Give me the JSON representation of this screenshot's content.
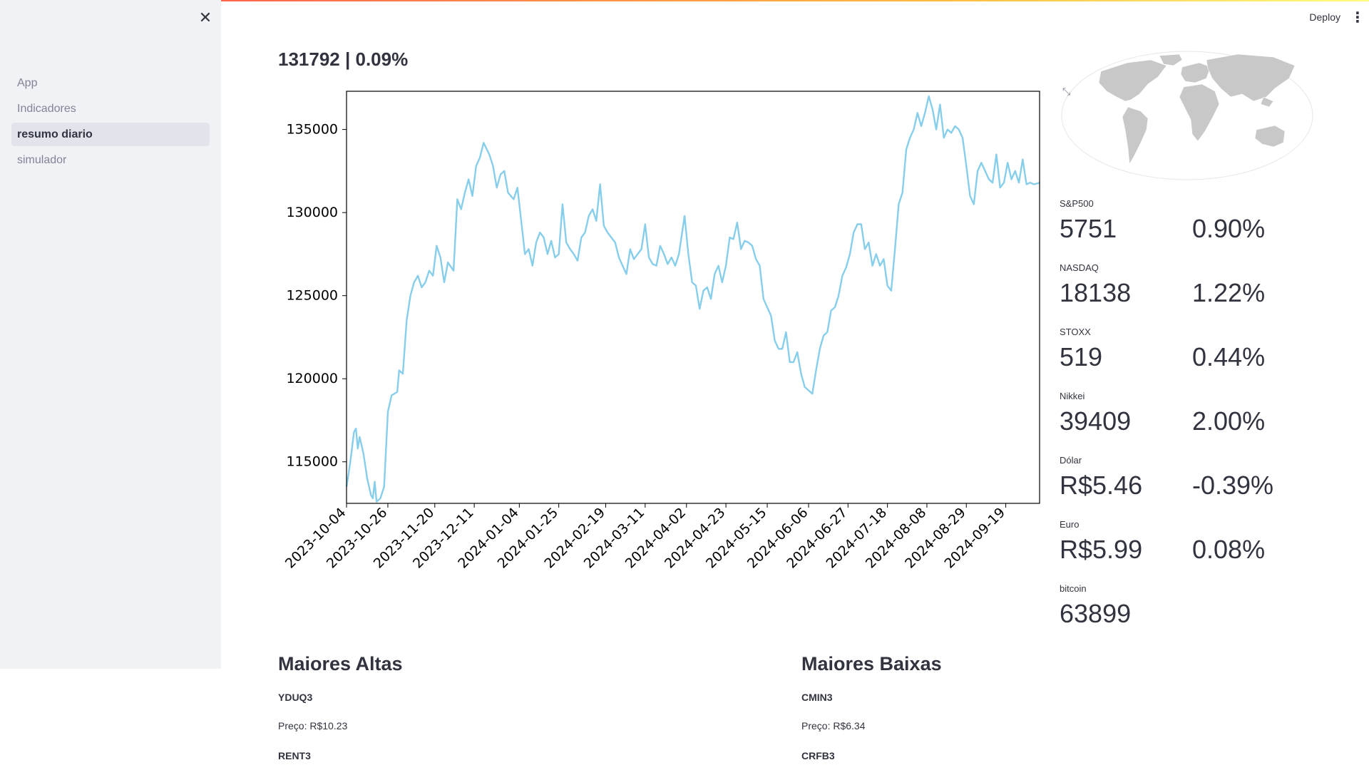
{
  "app": {
    "deploy_label": "Deploy",
    "close_icon": "close-icon",
    "menu_icon": "more-vertical-icon"
  },
  "sidebar": {
    "items": [
      {
        "label": "App",
        "active": false
      },
      {
        "label": "Indicadores",
        "active": false
      },
      {
        "label": "resumo diario",
        "active": true
      },
      {
        "label": "simulador",
        "active": false
      }
    ]
  },
  "main": {
    "title": "131792 | 0.09%"
  },
  "chart_data": {
    "type": "line",
    "title": "",
    "xlabel": "",
    "ylabel": "",
    "ylim": [
      112500,
      137300
    ],
    "yticks": [
      115000,
      120000,
      125000,
      130000,
      135000
    ],
    "xticks": [
      "2023-10-04",
      "2023-10-26",
      "2023-11-20",
      "2023-12-11",
      "2024-01-04",
      "2024-01-25",
      "2024-02-19",
      "2024-03-11",
      "2024-04-02",
      "2024-04-23",
      "2024-05-15",
      "2024-06-06",
      "2024-06-27",
      "2024-07-18",
      "2024-08-08",
      "2024-08-29",
      "2024-09-19"
    ],
    "xrange": [
      "2023-10-04",
      "2024-10-07"
    ],
    "color": "#87ceeb",
    "grid": false,
    "series": [
      {
        "points": [
          [
            "2023-10-04",
            113500
          ],
          [
            "2023-10-05",
            114200
          ],
          [
            "2023-10-06",
            115000
          ],
          [
            "2023-10-08",
            116800
          ],
          [
            "2023-10-09",
            117000
          ],
          [
            "2023-10-10",
            115800
          ],
          [
            "2023-10-11",
            116500
          ],
          [
            "2023-10-13",
            115500
          ],
          [
            "2023-10-15",
            114000
          ],
          [
            "2023-10-17",
            113000
          ],
          [
            "2023-10-18",
            112800
          ],
          [
            "2023-10-19",
            113800
          ],
          [
            "2023-10-20",
            112600
          ],
          [
            "2023-10-22",
            112800
          ],
          [
            "2023-10-24",
            113500
          ],
          [
            "2023-10-26",
            118000
          ],
          [
            "2023-10-28",
            119000
          ],
          [
            "2023-10-31",
            119200
          ],
          [
            "2023-11-01",
            120500
          ],
          [
            "2023-11-03",
            120300
          ],
          [
            "2023-11-05",
            123500
          ],
          [
            "2023-11-07",
            125000
          ],
          [
            "2023-11-09",
            125800
          ],
          [
            "2023-11-11",
            126200
          ],
          [
            "2023-11-13",
            125500
          ],
          [
            "2023-11-15",
            125800
          ],
          [
            "2023-11-17",
            126500
          ],
          [
            "2023-11-19",
            126200
          ],
          [
            "2023-11-21",
            128000
          ],
          [
            "2023-11-23",
            127300
          ],
          [
            "2023-11-25",
            125800
          ],
          [
            "2023-11-27",
            127000
          ],
          [
            "2023-11-30",
            126500
          ],
          [
            "2023-12-02",
            130800
          ],
          [
            "2023-12-04",
            130200
          ],
          [
            "2023-12-06",
            131200
          ],
          [
            "2023-12-08",
            132000
          ],
          [
            "2023-12-10",
            131000
          ],
          [
            "2023-12-12",
            132800
          ],
          [
            "2023-12-14",
            133300
          ],
          [
            "2023-12-16",
            134200
          ],
          [
            "2023-12-19",
            133500
          ],
          [
            "2023-12-21",
            132800
          ],
          [
            "2023-12-23",
            131500
          ],
          [
            "2023-12-25",
            132300
          ],
          [
            "2023-12-27",
            132500
          ],
          [
            "2023-12-29",
            131200
          ],
          [
            "2024-01-01",
            130800
          ],
          [
            "2024-01-03",
            131500
          ],
          [
            "2024-01-05",
            129500
          ],
          [
            "2024-01-07",
            127500
          ],
          [
            "2024-01-09",
            127800
          ],
          [
            "2024-01-11",
            126800
          ],
          [
            "2024-01-13",
            128200
          ],
          [
            "2024-01-15",
            128800
          ],
          [
            "2024-01-17",
            128500
          ],
          [
            "2024-01-19",
            127500
          ],
          [
            "2024-01-21",
            128300
          ],
          [
            "2024-01-23",
            127300
          ],
          [
            "2024-01-25",
            127500
          ],
          [
            "2024-01-27",
            130500
          ],
          [
            "2024-01-29",
            128200
          ],
          [
            "2024-01-31",
            127800
          ],
          [
            "2024-02-02",
            127500
          ],
          [
            "2024-02-04",
            127100
          ],
          [
            "2024-02-06",
            128500
          ],
          [
            "2024-02-08",
            128800
          ],
          [
            "2024-02-10",
            129800
          ],
          [
            "2024-02-12",
            130200
          ],
          [
            "2024-02-14",
            129500
          ],
          [
            "2024-02-16",
            131700
          ],
          [
            "2024-02-18",
            129200
          ],
          [
            "2024-02-20",
            128800
          ],
          [
            "2024-02-22",
            128500
          ],
          [
            "2024-02-24",
            128200
          ],
          [
            "2024-02-26",
            127300
          ],
          [
            "2024-02-28",
            126800
          ],
          [
            "2024-03-01",
            126300
          ],
          [
            "2024-03-03",
            127800
          ],
          [
            "2024-03-05",
            127200
          ],
          [
            "2024-03-07",
            127500
          ],
          [
            "2024-03-09",
            127800
          ],
          [
            "2024-03-11",
            129300
          ],
          [
            "2024-03-13",
            127300
          ],
          [
            "2024-03-15",
            126900
          ],
          [
            "2024-03-17",
            126800
          ],
          [
            "2024-03-19",
            128000
          ],
          [
            "2024-03-21",
            127500
          ],
          [
            "2024-03-23",
            126900
          ],
          [
            "2024-03-25",
            127300
          ],
          [
            "2024-03-27",
            126800
          ],
          [
            "2024-03-29",
            127500
          ],
          [
            "2024-04-01",
            129800
          ],
          [
            "2024-04-03",
            127500
          ],
          [
            "2024-04-05",
            125800
          ],
          [
            "2024-04-07",
            125600
          ],
          [
            "2024-04-09",
            124200
          ],
          [
            "2024-04-11",
            125300
          ],
          [
            "2024-04-13",
            125500
          ],
          [
            "2024-04-15",
            124800
          ],
          [
            "2024-04-17",
            126300
          ],
          [
            "2024-04-19",
            126800
          ],
          [
            "2024-04-21",
            125800
          ],
          [
            "2024-04-23",
            126800
          ],
          [
            "2024-04-25",
            128500
          ],
          [
            "2024-04-27",
            128400
          ],
          [
            "2024-04-29",
            129400
          ],
          [
            "2024-05-01",
            127800
          ],
          [
            "2024-05-03",
            128300
          ],
          [
            "2024-05-05",
            128200
          ],
          [
            "2024-05-07",
            128000
          ],
          [
            "2024-05-09",
            127200
          ],
          [
            "2024-05-11",
            126800
          ],
          [
            "2024-05-13",
            124800
          ],
          [
            "2024-05-15",
            124300
          ],
          [
            "2024-05-17",
            123800
          ],
          [
            "2024-05-19",
            122300
          ],
          [
            "2024-05-21",
            121800
          ],
          [
            "2024-05-23",
            121800
          ],
          [
            "2024-05-25",
            122800
          ],
          [
            "2024-05-27",
            121000
          ],
          [
            "2024-05-29",
            121000
          ],
          [
            "2024-05-31",
            121600
          ],
          [
            "2024-06-02",
            120300
          ],
          [
            "2024-06-04",
            119500
          ],
          [
            "2024-06-06",
            119300
          ],
          [
            "2024-06-08",
            119100
          ],
          [
            "2024-06-10",
            120500
          ],
          [
            "2024-06-12",
            121800
          ],
          [
            "2024-06-14",
            122600
          ],
          [
            "2024-06-16",
            122800
          ],
          [
            "2024-06-18",
            124100
          ],
          [
            "2024-06-20",
            124300
          ],
          [
            "2024-06-22",
            125000
          ],
          [
            "2024-06-24",
            126200
          ],
          [
            "2024-06-26",
            126700
          ],
          [
            "2024-06-28",
            127500
          ],
          [
            "2024-06-30",
            128800
          ],
          [
            "2024-07-02",
            129300
          ],
          [
            "2024-07-04",
            129300
          ],
          [
            "2024-07-06",
            127800
          ],
          [
            "2024-07-08",
            128200
          ],
          [
            "2024-07-10",
            126800
          ],
          [
            "2024-07-12",
            127500
          ],
          [
            "2024-07-14",
            126800
          ],
          [
            "2024-07-16",
            127200
          ],
          [
            "2024-07-18",
            125600
          ],
          [
            "2024-07-20",
            125300
          ],
          [
            "2024-07-22",
            127800
          ],
          [
            "2024-07-24",
            130500
          ],
          [
            "2024-07-26",
            131200
          ],
          [
            "2024-07-28",
            133800
          ],
          [
            "2024-07-30",
            134500
          ],
          [
            "2024-08-01",
            135000
          ],
          [
            "2024-08-03",
            136000
          ],
          [
            "2024-08-05",
            135200
          ],
          [
            "2024-08-07",
            136000
          ],
          [
            "2024-08-09",
            137000
          ],
          [
            "2024-08-11",
            136200
          ],
          [
            "2024-08-13",
            135000
          ],
          [
            "2024-08-15",
            136500
          ],
          [
            "2024-08-17",
            134500
          ],
          [
            "2024-08-19",
            135000
          ],
          [
            "2024-08-21",
            134800
          ],
          [
            "2024-08-23",
            135200
          ],
          [
            "2024-08-25",
            135000
          ],
          [
            "2024-08-27",
            134500
          ],
          [
            "2024-08-29",
            132800
          ],
          [
            "2024-08-31",
            131000
          ],
          [
            "2024-09-02",
            130500
          ],
          [
            "2024-09-04",
            132500
          ],
          [
            "2024-09-06",
            133000
          ],
          [
            "2024-09-08",
            132500
          ],
          [
            "2024-09-10",
            132000
          ],
          [
            "2024-09-12",
            131800
          ],
          [
            "2024-09-14",
            133500
          ],
          [
            "2024-09-16",
            131500
          ],
          [
            "2024-09-18",
            131800
          ],
          [
            "2024-09-20",
            133000
          ],
          [
            "2024-09-22",
            132000
          ],
          [
            "2024-09-24",
            132500
          ],
          [
            "2024-09-26",
            131800
          ],
          [
            "2024-09-28",
            133200
          ],
          [
            "2024-09-30",
            131700
          ],
          [
            "2024-10-02",
            131800
          ],
          [
            "2024-10-04",
            131700
          ],
          [
            "2024-10-07",
            131792
          ]
        ]
      }
    ]
  },
  "map": {
    "icon": "world-map",
    "expand_icon": "expand-icon"
  },
  "metrics": [
    {
      "label": "S&P500",
      "value": "5751",
      "pct": "0.90%"
    },
    {
      "label": "NASDAQ",
      "value": "18138",
      "pct": "1.22%"
    },
    {
      "label": "STOXX",
      "value": "519",
      "pct": "0.44%"
    },
    {
      "label": "Nikkei",
      "value": "39409",
      "pct": "2.00%"
    },
    {
      "label": "Dólar",
      "value": "R$5.46",
      "pct": "-0.39%"
    },
    {
      "label": "Euro",
      "value": "R$5.99",
      "pct": "0.08%"
    },
    {
      "label": "bitcoin",
      "value": "63899",
      "pct": ""
    }
  ],
  "altas": {
    "title": "Maiores Altas",
    "items": [
      {
        "ticker": "YDUQ3",
        "price": "Preço: R$10.23"
      },
      {
        "ticker": "RENT3",
        "price": ""
      }
    ]
  },
  "baixas": {
    "title": "Maiores Baixas",
    "items": [
      {
        "ticker": "CMIN3",
        "price": "Preço: R$6.34"
      },
      {
        "ticker": "CRFB3",
        "price": ""
      }
    ]
  }
}
